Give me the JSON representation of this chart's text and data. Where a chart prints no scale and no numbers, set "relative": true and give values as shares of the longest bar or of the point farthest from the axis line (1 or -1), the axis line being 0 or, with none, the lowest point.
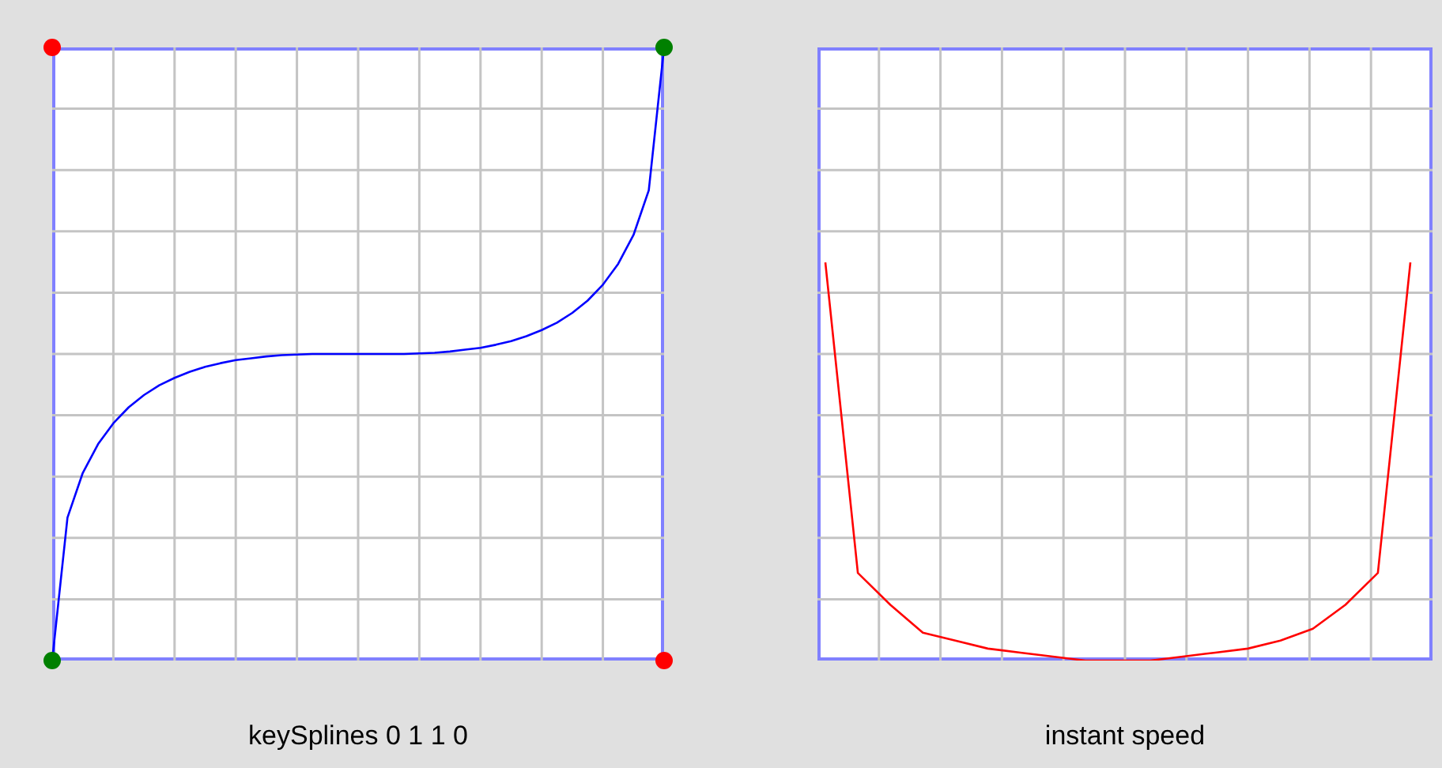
{
  "chart_data": [
    {
      "type": "line",
      "title": "keySplines 0 1 1 0",
      "relative": true,
      "grid": true,
      "categories": [
        null,
        null,
        null,
        null,
        null,
        null,
        null,
        null,
        null,
        null,
        null,
        null,
        null,
        null,
        null,
        null,
        null,
        null,
        null,
        null,
        null,
        null,
        null,
        null,
        null,
        null,
        null,
        null,
        null,
        null,
        null,
        null,
        null,
        null,
        null,
        null,
        null,
        null,
        null,
        null,
        null
      ],
      "series": [
        {
          "color": "#0000ff",
          "values": [
            0,
            0.233,
            0.306,
            0.353,
            0.387,
            0.413,
            0.433,
            0.449,
            0.461,
            0.471,
            0.479,
            0.485,
            0.49,
            0.493,
            0.496,
            0.498,
            0.499,
            0.5,
            0.5,
            0.5,
            0.5,
            0.5,
            0.5,
            0.5,
            0.501,
            0.502,
            0.504,
            0.507,
            0.51,
            0.515,
            0.521,
            0.529,
            0.539,
            0.551,
            0.567,
            0.587,
            0.613,
            0.647,
            0.694,
            0.767,
            1
          ]
        }
      ]
    },
    {
      "type": "line",
      "title": "instant speed",
      "relative": true,
      "grid": true,
      "categories": [
        null,
        null,
        null,
        null,
        null,
        null,
        null,
        null,
        null,
        null,
        null,
        null,
        null,
        null,
        null,
        null,
        null,
        null,
        null
      ],
      "series": [
        {
          "color": "#ff0000",
          "values": [
            1,
            0.22,
            0.14,
            0.07,
            0.05,
            0.03,
            0.02,
            0.01,
            0,
            0,
            0,
            0.01,
            0.02,
            0.03,
            0.05,
            0.08,
            0.14,
            0.22,
            1
          ]
        }
      ]
    }
  ]
}
